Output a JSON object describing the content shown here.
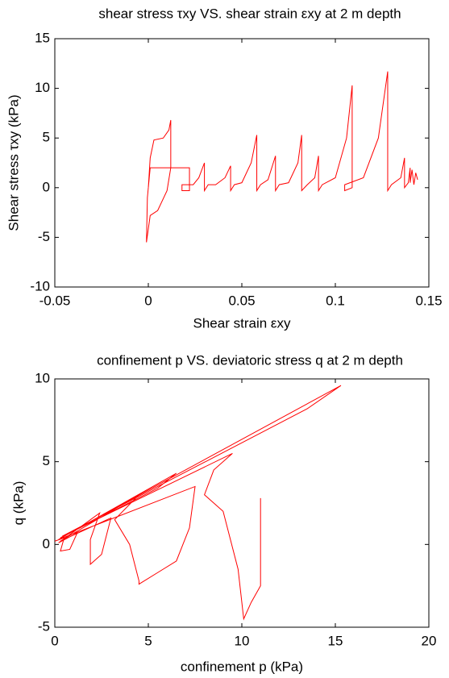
{
  "chart_data": [
    {
      "type": "line",
      "title": "shear stress τxy VS. shear strain εxy at 2 m depth",
      "xlabel": "Shear strain εxy",
      "ylabel": "Shear stress τxy (kPa)",
      "color": "#ff0000",
      "xlim": [
        -0.05,
        0.15
      ],
      "ylim": [
        -10,
        15
      ],
      "xticks": [
        -0.05,
        0,
        0.05,
        0.1,
        0.15
      ],
      "yticks": [
        -10,
        -5,
        0,
        5,
        10,
        15
      ],
      "x": [
        0,
        0.001,
        0.003,
        0.008,
        0.011,
        0.012,
        0.012,
        0.01,
        0.005,
        0.001,
        -0.001,
        -0.0005,
        0.001,
        0.022,
        0.022,
        0.018,
        0.018,
        0.024,
        0.027,
        0.03,
        0.03,
        0.032,
        0.036,
        0.041,
        0.044,
        0.044,
        0.046,
        0.05,
        0.055,
        0.058,
        0.058,
        0.06,
        0.064,
        0.068,
        0.068,
        0.07,
        0.075,
        0.08,
        0.082,
        0.082,
        0.085,
        0.089,
        0.091,
        0.091,
        0.093,
        0.1,
        0.106,
        0.109,
        0.109,
        0.105,
        0.105,
        0.115,
        0.123,
        0.128,
        0.128,
        0.13,
        0.135,
        0.137,
        0.137,
        0.139,
        0.14,
        0.14,
        0.141,
        0.142,
        0.143,
        0.144
      ],
      "values": [
        0,
        3,
        4.8,
        5,
        5.8,
        6.8,
        2,
        -0.3,
        -2.3,
        -2.8,
        -5.5,
        -1,
        2,
        2,
        -0.3,
        -0.3,
        0.3,
        0.3,
        1,
        2.5,
        -0.3,
        0.3,
        0.3,
        1,
        2.2,
        -0.3,
        0.3,
        0.5,
        2.5,
        5.3,
        -0.3,
        0.3,
        0.8,
        3.2,
        -0.3,
        0.3,
        0.5,
        2.5,
        5.3,
        -0.3,
        0.3,
        1,
        3.2,
        -0.3,
        0.3,
        1,
        5,
        10.3,
        0,
        -0.3,
        0.3,
        1,
        5,
        11.7,
        -0.3,
        0.3,
        1,
        3,
        0,
        0.5,
        2,
        0.5,
        1.8,
        0.3,
        1.5,
        0.8
      ]
    },
    {
      "type": "line",
      "title": "confinement p VS. deviatoric stress q at 2 m depth",
      "xlabel": "confinement p (kPa)",
      "ylabel": "q (kPa)",
      "color": "#ff0000",
      "xlim": [
        0,
        20
      ],
      "ylim": [
        -5,
        10
      ],
      "xticks": [
        0,
        5,
        10,
        15,
        20
      ],
      "yticks": [
        -5,
        0,
        5,
        10
      ],
      "x": [
        0,
        0.5,
        0.3,
        0.8,
        1.2,
        0.2,
        2.4,
        1.9,
        1.9,
        2.5,
        3,
        0.3,
        4.5,
        3.2,
        4,
        4.5,
        4.5,
        5.5,
        6.5,
        7.2,
        7.5,
        0.2,
        6.5,
        5.5,
        0.3,
        15.3,
        13.5,
        0.4,
        9.5,
        8.5,
        8,
        9,
        9.8,
        10.1,
        10.5,
        11,
        11,
        11
      ],
      "values": [
        0.2,
        0.4,
        -0.4,
        -0.3,
        0.7,
        0.1,
        1.9,
        0.3,
        -1.2,
        -0.6,
        1.6,
        0.2,
        3,
        1.5,
        0,
        -2.2,
        -2.4,
        -1.7,
        -1,
        1,
        3.5,
        0.3,
        4.3,
        3.4,
        0.4,
        9.6,
        8.2,
        0.5,
        5.5,
        4.5,
        3,
        2,
        -1.5,
        -4.5,
        -3.5,
        -2.5,
        -2.2,
        2.8
      ]
    }
  ]
}
